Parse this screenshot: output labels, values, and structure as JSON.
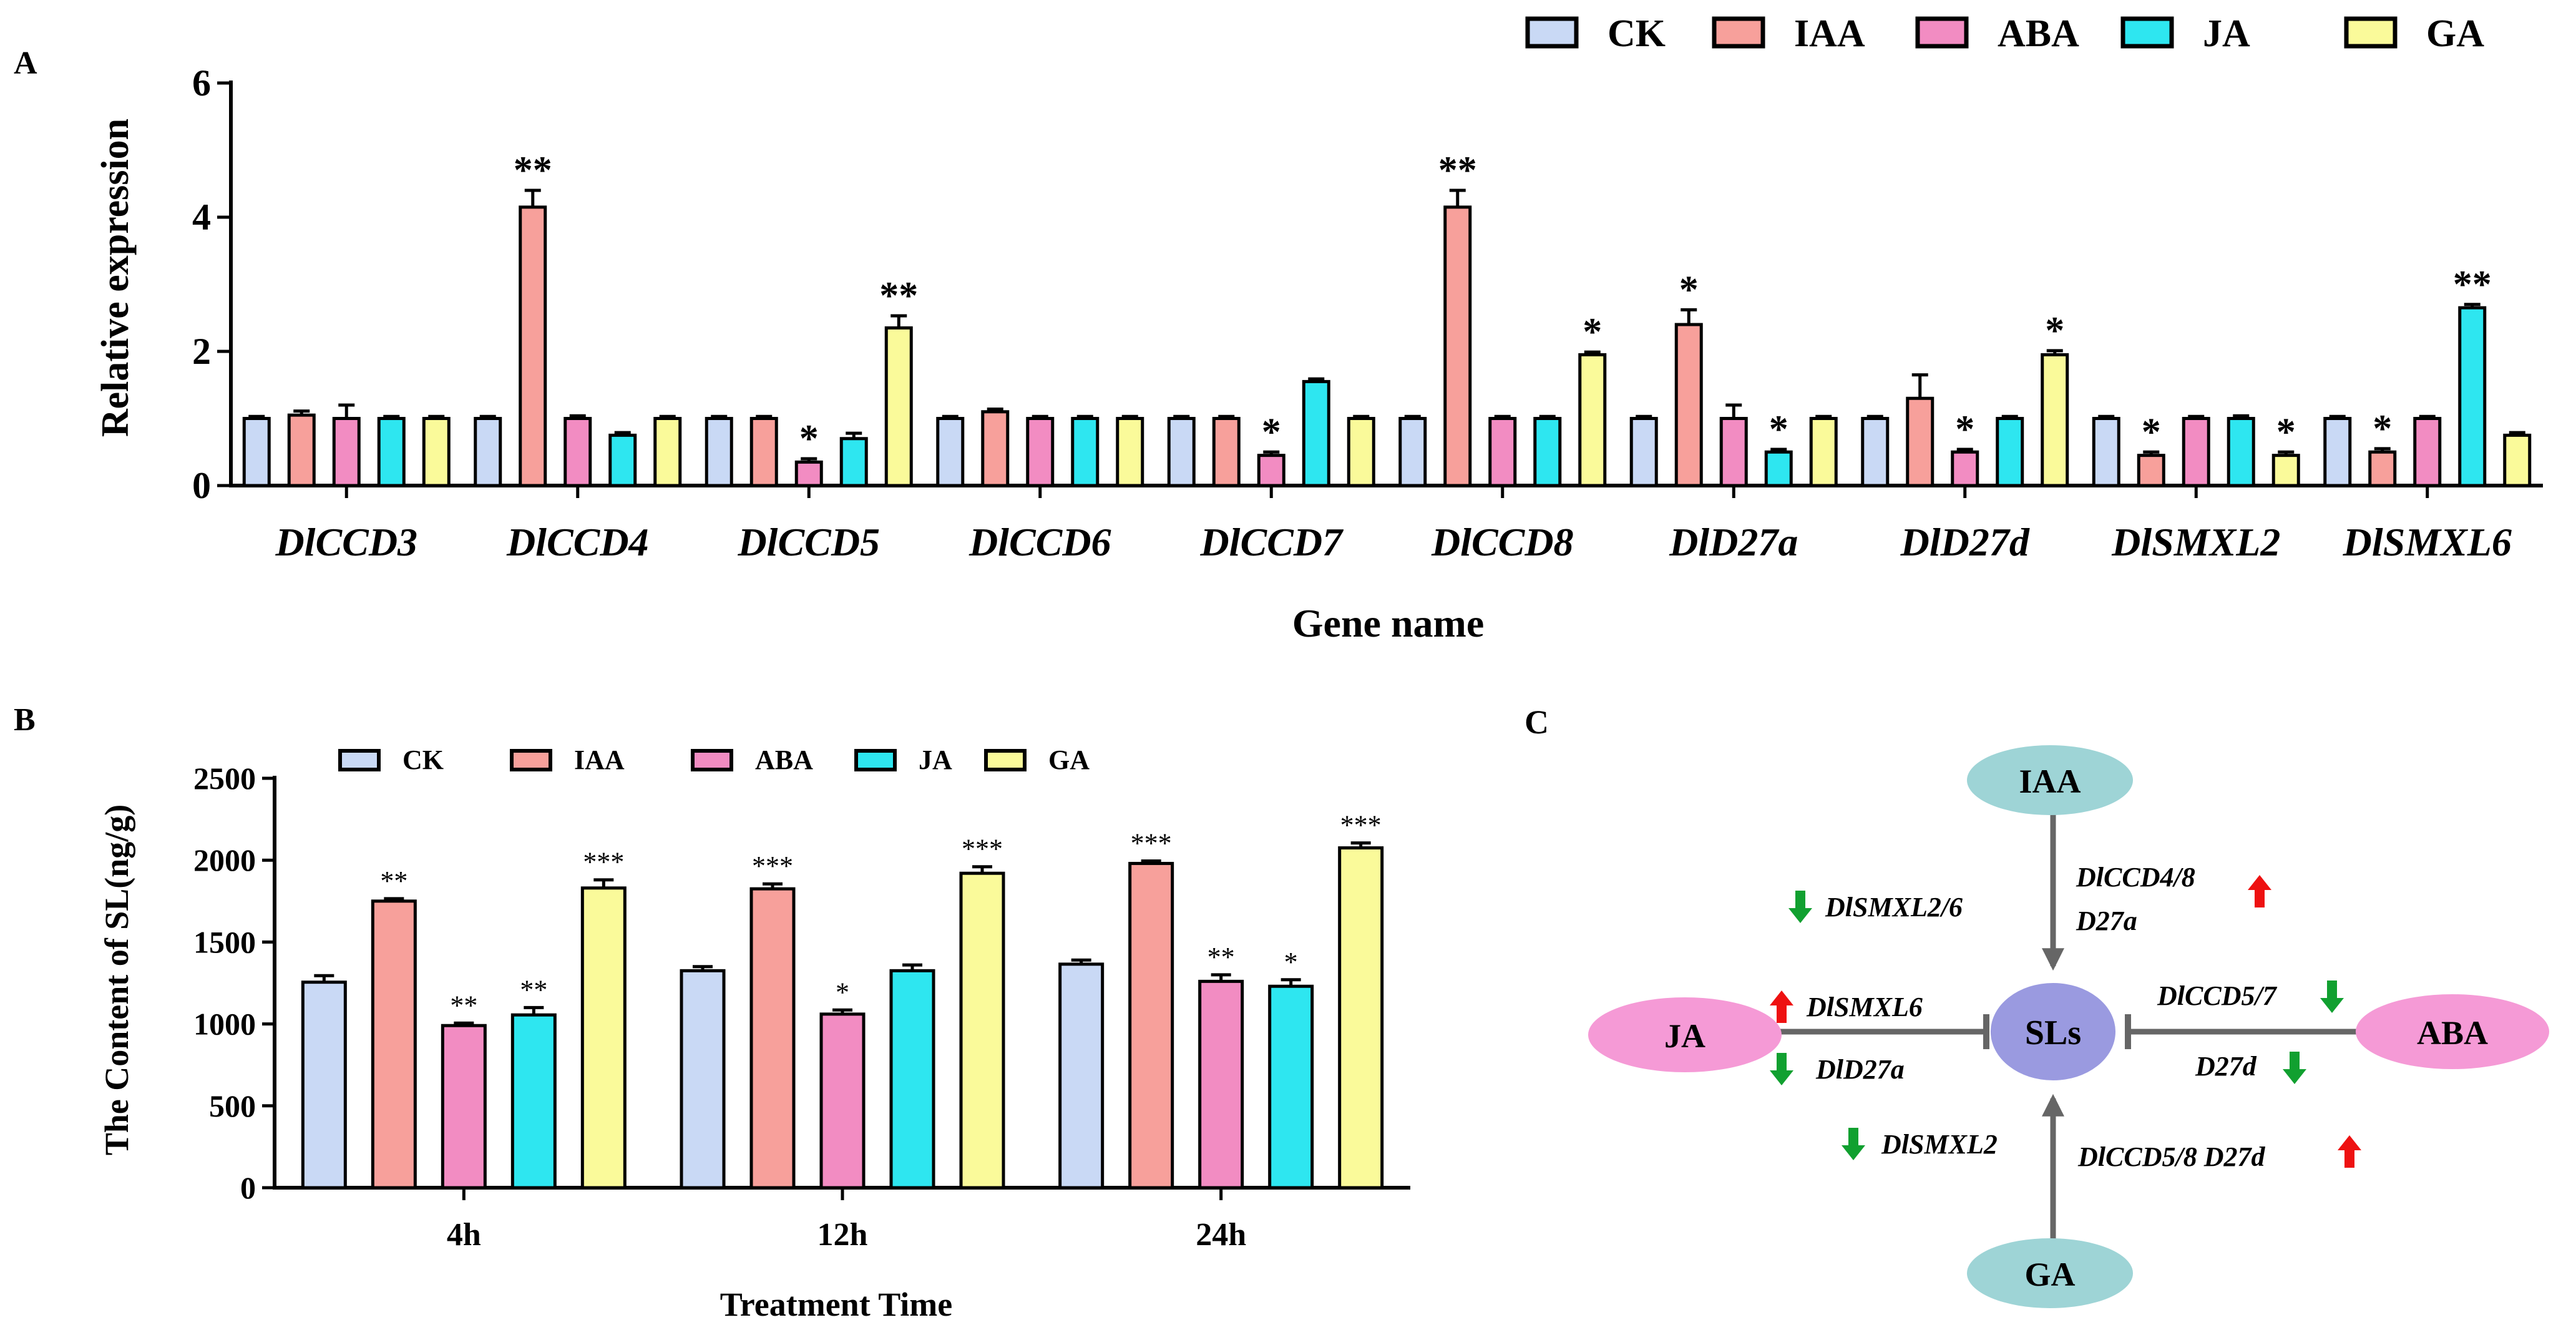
{
  "colors": {
    "CK": "#c9d9f5",
    "IAA": "#f7a09b",
    "ABA": "#f28cc2",
    "JA": "#2ee6f0",
    "GA": "#fafa9a",
    "node_teal": "#9ed4d6",
    "node_pink": "#f59ad6",
    "node_sls": "#9a9ae0",
    "up_red": "#ee1111",
    "down_green": "#11a030",
    "arrow_gray": "#666666"
  },
  "chart_data": [
    {
      "panel": "A",
      "type": "bar",
      "ylabel": "Relative expression",
      "xlabel": "Gene name",
      "ylim": [
        0,
        6
      ],
      "yticks": [
        "0",
        "2",
        "4",
        "6"
      ],
      "legend": [
        "CK",
        "IAA",
        "ABA",
        "JA",
        "GA"
      ],
      "legend_position": "top-right",
      "categories": [
        "DlCCD3",
        "DlCCD4",
        "DlCCD5",
        "DlCCD6",
        "DlCCD7",
        "DlCCD8",
        "DlD27a",
        "DlD27d",
        "DlSMXL2",
        "DlSMXL6"
      ],
      "series": [
        {
          "name": "CK",
          "values": [
            1.0,
            1.0,
            1.0,
            1.0,
            1.0,
            1.0,
            1.0,
            1.0,
            1.0,
            1.0
          ],
          "errors": [
            0.03,
            0.03,
            0.03,
            0.03,
            0.03,
            0.03,
            0.03,
            0.03,
            0.03,
            0.03
          ],
          "marks": [
            "",
            "",
            "",
            "",
            "",
            "",
            "",
            "",
            "",
            ""
          ]
        },
        {
          "name": "IAA",
          "values": [
            1.05,
            4.15,
            1.0,
            1.1,
            1.0,
            4.15,
            2.4,
            1.3,
            0.45,
            0.5
          ],
          "errors": [
            0.06,
            0.25,
            0.03,
            0.04,
            0.03,
            0.25,
            0.22,
            0.35,
            0.05,
            0.05
          ],
          "marks": [
            "",
            "**",
            "",
            "",
            "",
            "**",
            "*",
            "",
            "*",
            "*"
          ]
        },
        {
          "name": "ABA",
          "values": [
            1.0,
            1.0,
            0.35,
            1.0,
            0.45,
            1.0,
            1.0,
            0.5,
            1.0,
            1.0
          ],
          "errors": [
            0.2,
            0.04,
            0.05,
            0.03,
            0.05,
            0.03,
            0.2,
            0.04,
            0.03,
            0.03
          ],
          "marks": [
            "",
            "",
            "*",
            "",
            "*",
            "",
            "",
            "*",
            "",
            ""
          ]
        },
        {
          "name": "JA",
          "values": [
            1.0,
            0.75,
            0.7,
            1.0,
            1.55,
            1.0,
            0.5,
            1.0,
            1.0,
            2.65
          ],
          "errors": [
            0.03,
            0.04,
            0.08,
            0.03,
            0.04,
            0.03,
            0.04,
            0.03,
            0.04,
            0.05
          ],
          "marks": [
            "",
            "",
            "",
            "",
            "",
            "",
            "*",
            "",
            "",
            "**"
          ]
        },
        {
          "name": "GA",
          "values": [
            1.0,
            1.0,
            2.35,
            1.0,
            1.0,
            1.95,
            1.0,
            1.95,
            0.45,
            0.75
          ],
          "errors": [
            0.03,
            0.03,
            0.18,
            0.03,
            0.03,
            0.04,
            0.03,
            0.06,
            0.05,
            0.04
          ],
          "marks": [
            "",
            "",
            "**",
            "",
            "",
            "*",
            "",
            "*",
            "*",
            ""
          ]
        }
      ]
    },
    {
      "panel": "B",
      "type": "bar",
      "ylabel": "The Content of SL(ng/g)",
      "xlabel": "Treatment Time",
      "ylim": [
        0,
        2500
      ],
      "yticks": [
        "0",
        "500",
        "1000",
        "1500",
        "2000",
        "2500"
      ],
      "legend": [
        "CK",
        "IAA",
        "ABA",
        "JA",
        "GA"
      ],
      "legend_position": "top",
      "categories": [
        "4h",
        "12h",
        "24h"
      ],
      "series": [
        {
          "name": "CK",
          "values": [
            1255,
            1325,
            1365
          ],
          "errors": [
            40,
            25,
            25
          ],
          "marks": [
            "",
            "",
            ""
          ]
        },
        {
          "name": "IAA",
          "values": [
            1750,
            1825,
            1980
          ],
          "errors": [
            15,
            30,
            15
          ],
          "marks": [
            "**",
            "***",
            "***"
          ]
        },
        {
          "name": "ABA",
          "values": [
            990,
            1060,
            1260
          ],
          "errors": [
            15,
            25,
            40
          ],
          "marks": [
            "**",
            "*",
            "**"
          ]
        },
        {
          "name": "JA",
          "values": [
            1055,
            1325,
            1230
          ],
          "errors": [
            45,
            35,
            40
          ],
          "marks": [
            "**",
            "",
            "*"
          ]
        },
        {
          "name": "GA",
          "values": [
            1830,
            1920,
            2075
          ],
          "errors": [
            50,
            40,
            30
          ],
          "marks": [
            "***",
            "***",
            "***"
          ]
        }
      ]
    }
  ],
  "panel_labels": {
    "a": "A",
    "b": "B",
    "c": "C"
  },
  "diagram": {
    "center": "SLs",
    "nodes": {
      "top": "IAA",
      "left": "JA",
      "right": "ABA",
      "bottom": "GA"
    },
    "labels": {
      "top_left": "DlSMXL2/6",
      "top_right_1": "DlCCD4/8",
      "top_right_2": "D27a",
      "left_top": "DlSMXL6",
      "left_bottom": "DlD27a",
      "right_top": "DlCCD5/7",
      "right_bottom": "D27d",
      "bottom_left": "DlSMXL2",
      "bottom_right": "DlCCD5/8 D27d"
    },
    "arrows": {
      "top_left": "down",
      "top_right": "up",
      "left_top": "up",
      "left_bottom": "down",
      "right_top": "down",
      "right_bottom": "down",
      "bottom_left": "down",
      "bottom_right": "up"
    }
  }
}
